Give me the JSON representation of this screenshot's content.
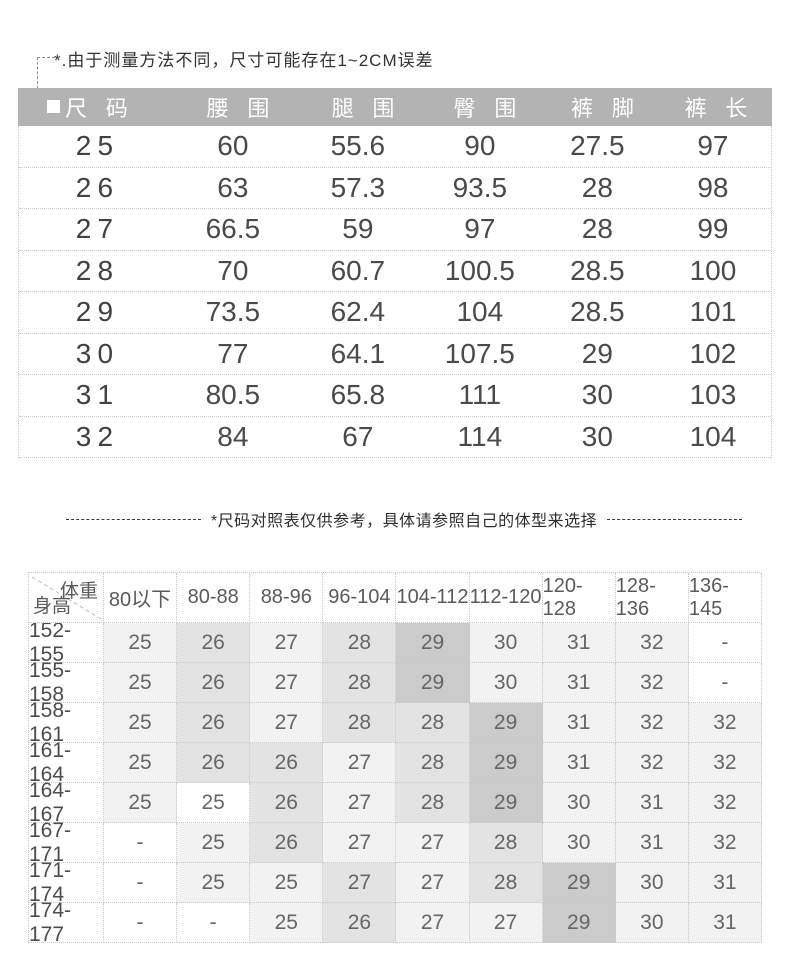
{
  "notes": {
    "top": "*.由于测量方法不同，尺寸可能存在1~2CM误差",
    "middle": "*尺码对照表仅供参考，具体请参照自己的体型来选择"
  },
  "colors": {
    "bar": "#b3b3b3",
    "bar_text": "#ffffff",
    "border": "#c9c9c9",
    "t1_text": "#4a4a4a",
    "t2_text": "#666666",
    "shade0": "#ffffff",
    "shade1": "#f2f2f2",
    "shade2": "#e3e3e3",
    "shade3": "#cbcbcb"
  },
  "chart_data": [
    {
      "type": "table",
      "name": "size_measurements_cm",
      "columns": [
        "尺码",
        "腰围",
        "腿围",
        "臀围",
        "裤脚",
        "裤长"
      ],
      "rows": [
        [
          "25",
          "60",
          "55.6",
          "90",
          "27.5",
          "97"
        ],
        [
          "26",
          "63",
          "57.3",
          "93.5",
          "28",
          "98"
        ],
        [
          "27",
          "66.5",
          "59",
          "97",
          "28",
          "99"
        ],
        [
          "28",
          "70",
          "60.7",
          "100.5",
          "28.5",
          "100"
        ],
        [
          "29",
          "73.5",
          "62.4",
          "104",
          "28.5",
          "101"
        ],
        [
          "30",
          "77",
          "64.1",
          "107.5",
          "29",
          "102"
        ],
        [
          "31",
          "80.5",
          "65.8",
          "111",
          "30",
          "103"
        ],
        [
          "32",
          "84",
          "67",
          "114",
          "30",
          "104"
        ]
      ]
    },
    {
      "type": "table",
      "name": "height_weight_size_matrix",
      "col_axis": "体重",
      "row_axis": "身高",
      "columns": [
        "80以下",
        "80-88",
        "88-96",
        "96-104",
        "104-112",
        "112-120",
        "120-128",
        "128-136",
        "136-145"
      ],
      "row_labels": [
        "152-155",
        "155-158",
        "158-161",
        "161-164",
        "164-167",
        "167-171",
        "171-174",
        "174-177"
      ],
      "values": [
        [
          "25",
          "26",
          "27",
          "28",
          "29",
          "30",
          "31",
          "32",
          "-"
        ],
        [
          "25",
          "26",
          "27",
          "28",
          "29",
          "30",
          "31",
          "32",
          "-"
        ],
        [
          "25",
          "26",
          "27",
          "28",
          "28",
          "29",
          "31",
          "32",
          "32"
        ],
        [
          "25",
          "26",
          "26",
          "27",
          "28",
          "29",
          "31",
          "32",
          "32"
        ],
        [
          "25",
          "25",
          "26",
          "27",
          "28",
          "29",
          "30",
          "31",
          "32"
        ],
        [
          "-",
          "25",
          "26",
          "27",
          "27",
          "28",
          "30",
          "31",
          "32"
        ],
        [
          "-",
          "25",
          "25",
          "27",
          "27",
          "28",
          "29",
          "30",
          "31"
        ],
        [
          "-",
          "-",
          "25",
          "26",
          "27",
          "27",
          "29",
          "30",
          "31"
        ]
      ],
      "cell_shades": [
        [
          1,
          2,
          1,
          2,
          3,
          1,
          1,
          1,
          0
        ],
        [
          1,
          2,
          1,
          2,
          3,
          1,
          1,
          1,
          0
        ],
        [
          1,
          2,
          1,
          2,
          2,
          3,
          1,
          1,
          1
        ],
        [
          1,
          2,
          2,
          1,
          2,
          3,
          1,
          1,
          1
        ],
        [
          1,
          0,
          2,
          1,
          2,
          3,
          1,
          1,
          1
        ],
        [
          0,
          1,
          2,
          1,
          1,
          2,
          1,
          1,
          1
        ],
        [
          0,
          1,
          1,
          2,
          1,
          2,
          3,
          1,
          1
        ],
        [
          0,
          0,
          1,
          2,
          1,
          1,
          3,
          1,
          1
        ]
      ],
      "shade_legend": {
        "0": "#ffffff",
        "1": "#f2f2f2",
        "2": "#e3e3e3",
        "3": "#cbcbcb"
      }
    }
  ]
}
